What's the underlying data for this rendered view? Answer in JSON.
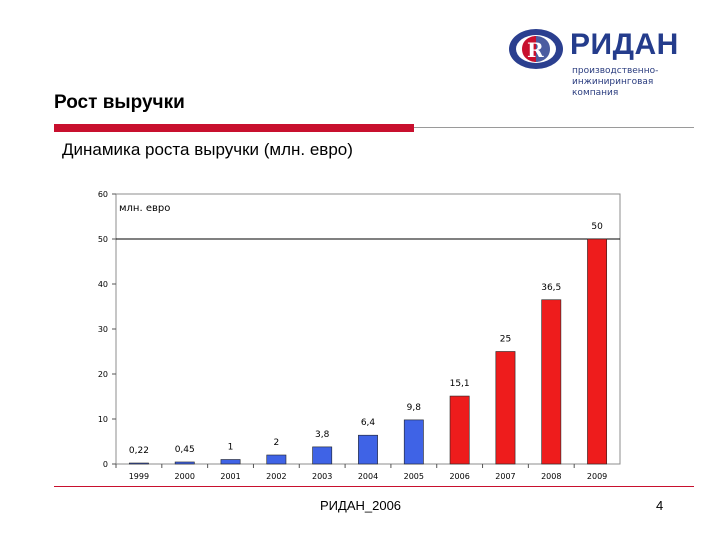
{
  "header": {
    "logo_name": "РИДАН",
    "logo_tagline": [
      "производственно-",
      "инжиниринговая",
      "компания"
    ],
    "title": "Рост выручки"
  },
  "subtitle": "Динамика роста выручки (млн. евро)",
  "chart_data": {
    "type": "bar",
    "title": "",
    "unit_label": "млн. евро",
    "categories": [
      "1999",
      "2000",
      "2001",
      "2002",
      "2003",
      "2004",
      "2005",
      "2006",
      "2007",
      "2008",
      "2009"
    ],
    "values": [
      0.22,
      0.45,
      1,
      2,
      3.8,
      6.4,
      9.8,
      15.1,
      25,
      36.5,
      50
    ],
    "value_labels": [
      "0,22",
      "0,45",
      "1",
      "2",
      "3,8",
      "6,4",
      "9,8",
      "15,1",
      "25",
      "36,5",
      "50"
    ],
    "bar_colors": [
      "#3f63e6",
      "#3f63e6",
      "#3f63e6",
      "#3f63e6",
      "#3f63e6",
      "#3f63e6",
      "#3f63e6",
      "#ee1c1c",
      "#ee1c1c",
      "#ee1c1c",
      "#ee1c1c"
    ],
    "ylim": [
      0,
      60
    ],
    "yticks": [
      0,
      10,
      20,
      30,
      40,
      50,
      60
    ],
    "gridlines": [
      50
    ],
    "grid": false,
    "legend": "none",
    "xlabel": "",
    "ylabel": ""
  },
  "footer": {
    "text": "РИДАН_2006",
    "page_number": "4"
  },
  "colors": {
    "accent_red": "#c8102e",
    "brand_blue": "#243c8c"
  }
}
